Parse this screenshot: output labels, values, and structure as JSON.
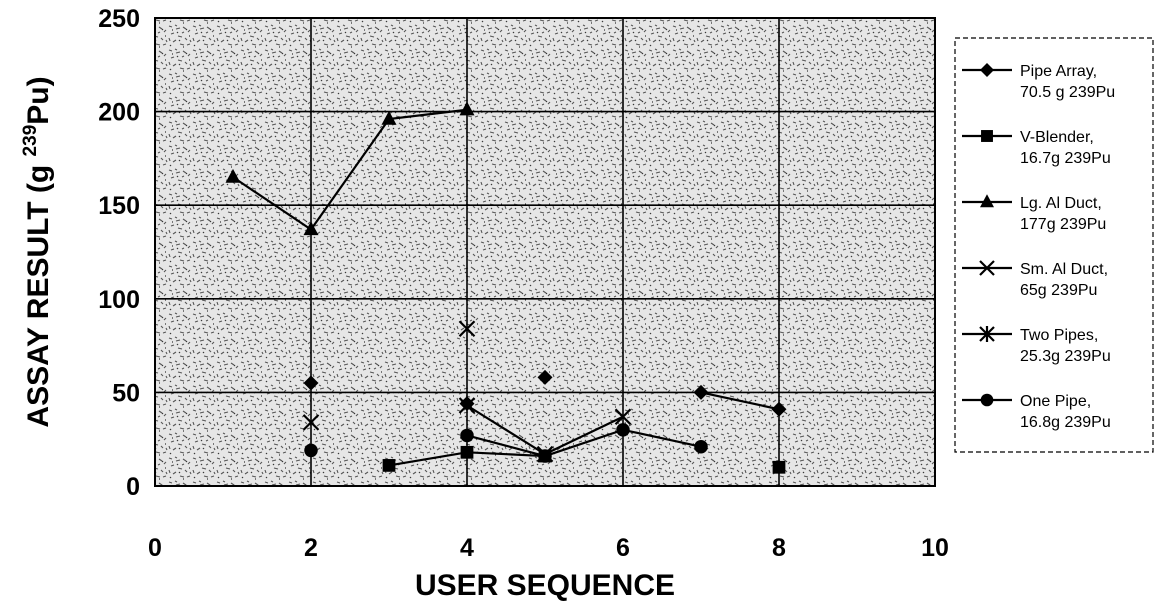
{
  "chart_data": {
    "type": "scatter",
    "xlabel": "USER SEQUENCE",
    "ylabel_main": "ASSAY RESULT (g ",
    "ylabel_sup": "239",
    "ylabel_tail": "Pu)",
    "xlim": [
      0,
      10
    ],
    "ylim": [
      0,
      250
    ],
    "x_ticks": [
      0,
      2,
      4,
      6,
      8,
      10
    ],
    "y_ticks": [
      0,
      50,
      100,
      150,
      200,
      250
    ],
    "grid": true,
    "legend_position": "right",
    "series": [
      {
        "name_line1": "Pipe Array,",
        "name_line2": "70.5 g 239Pu",
        "marker": "diamond",
        "points": [
          [
            2,
            55
          ],
          [
            4,
            44
          ],
          [
            5,
            58
          ],
          [
            7,
            50
          ],
          [
            8,
            41
          ]
        ],
        "segments": [
          [
            [
              7,
              50
            ],
            [
              8,
              41
            ]
          ]
        ]
      },
      {
        "name_line1": "V-Blender,",
        "name_line2": "16.7g 239Pu",
        "marker": "square",
        "points": [
          [
            3,
            11
          ],
          [
            4,
            18
          ],
          [
            5,
            16
          ],
          [
            8,
            10
          ]
        ],
        "segments": [
          [
            [
              3,
              11
            ],
            [
              4,
              18
            ],
            [
              5,
              16
            ]
          ]
        ]
      },
      {
        "name_line1": "Lg. Al Duct,",
        "name_line2": "177g 239Pu",
        "marker": "triangle",
        "points": [
          [
            1,
            165
          ],
          [
            2,
            137
          ],
          [
            3,
            196
          ],
          [
            4,
            201
          ]
        ],
        "segments": [
          [
            [
              1,
              165
            ],
            [
              2,
              137
            ],
            [
              3,
              196
            ],
            [
              4,
              201
            ]
          ]
        ]
      },
      {
        "name_line1": "Sm. Al Duct,",
        "name_line2": "65g 239Pu",
        "marker": "x",
        "points": [
          [
            2,
            34
          ],
          [
            4,
            84
          ],
          [
            4,
            43
          ],
          [
            5,
            17
          ],
          [
            6,
            37
          ]
        ],
        "segments": [
          [
            [
              4,
              43
            ],
            [
              5,
              17
            ],
            [
              6,
              37
            ]
          ]
        ]
      },
      {
        "name_line1": "Two Pipes,",
        "name_line2": "25.3g 239Pu",
        "marker": "star",
        "points": [],
        "segments": []
      },
      {
        "name_line1": "One Pipe,",
        "name_line2": "16.8g 239Pu",
        "marker": "circle",
        "points": [
          [
            2,
            19
          ],
          [
            4,
            27
          ],
          [
            5,
            16
          ],
          [
            6,
            30
          ],
          [
            7,
            21
          ]
        ],
        "segments": [
          [
            [
              4,
              27
            ],
            [
              5,
              16
            ],
            [
              6,
              30
            ],
            [
              7,
              21
            ]
          ]
        ]
      }
    ]
  }
}
